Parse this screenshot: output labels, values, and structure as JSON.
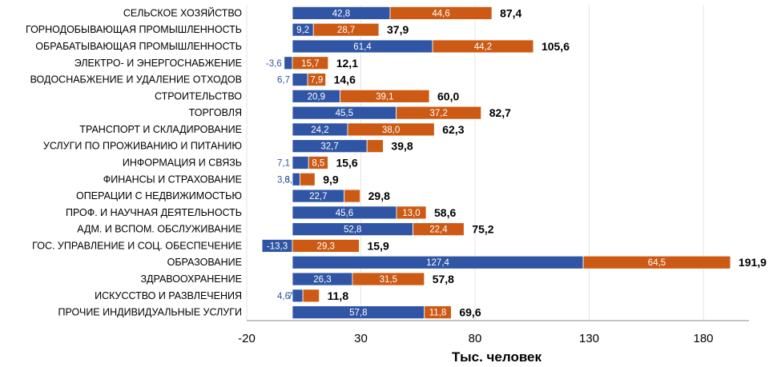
{
  "chart_data": {
    "type": "bar",
    "orientation": "horizontal",
    "stacked": true,
    "xlabel": "Тыс. человек",
    "xlim": [
      -20,
      200
    ],
    "xticks": [
      "-20",
      "30",
      "80",
      "130",
      "180"
    ],
    "grid": true,
    "colors": {
      "series1": "#2f55a4",
      "series2": "#cc5a14",
      "negative_label": "#2f55a4"
    },
    "categories": [
      "СЕЛЬСКОЕ ХОЗЯЙСТВО",
      "ГОРНОДОБЫВАЮЩАЯ ПРОМЫШЛЕННОСТЬ",
      "ОБРАБАТЫВАЮЩАЯ ПРОМЫШЛЕННОСТЬ",
      "ЭЛЕКТРО- И ЭНЕРГОСНАБЖЕНИЕ",
      "ВОДОСНАБЖЕНИЕ И УДАЛЕНИЕ ОТХОДОВ",
      "СТРОИТЕЛЬСТВО",
      "ТОРГОВЛЯ",
      "ТРАНСПОРТ И СКЛАДИРОВАНИЕ",
      "УСЛУГИ ПО ПРОЖИВАНИЮ И ПИТАНИЮ",
      "ИНФОРМАЦИЯ И СВЯЗЬ",
      "ФИНАНСЫ И СТРАХОВАНИЕ",
      "ОПЕРАЦИИ С НЕДВИЖИМОСТЬЮ",
      "ПРОФ. И НАУЧНАЯ ДЕЯТЕЛЬНОСТЬ",
      "АДМ. И ВСПОМ. ОБСЛУЖИВАНИЕ",
      "ГОС. УПРАВЛЕНИЕ И СОЦ. ОБЕСПЕЧЕНИЕ",
      "ОБРАЗОВАНИЕ",
      "ЗДРАВООХРАНЕНИЕ",
      "ИСКУССТВО И РАЗВЛЕЧЕНИЯ",
      "ПРОЧИЕ ИНДИВИДУАЛЬНЫЕ УСЛУГИ"
    ],
    "series": [
      {
        "values": [
          42.8,
          9.2,
          61.4,
          -3.6,
          6.7,
          20.9,
          45.5,
          24.2,
          32.7,
          7.1,
          3.3,
          22.7,
          45.6,
          52.8,
          -13.3,
          127.4,
          26.3,
          4.6,
          57.8
        ],
        "labels": [
          "42,8",
          "9,2",
          "61,4",
          "-3,6",
          "6,7",
          "20,9",
          "45,5",
          "24,2",
          "32,7",
          "7,1",
          "3,3",
          "22,7",
          "45,6",
          "52,8",
          "-13,3",
          "127,4",
          "26,3",
          "4,6",
          "57,8"
        ]
      },
      {
        "values": [
          44.6,
          28.7,
          44.2,
          15.7,
          7.9,
          39.1,
          37.2,
          38.0,
          7.1,
          8.5,
          6.6,
          7.0,
          13.0,
          22.4,
          29.3,
          64.5,
          31.5,
          7.2,
          11.8
        ],
        "labels": [
          "44,6",
          "28,7",
          "44,2",
          "15,7",
          "7,9",
          "39,1",
          "37,2",
          "38,0",
          "7,1",
          "8,5",
          "6,6",
          "7,0",
          "13,0",
          "22,4",
          "29,3",
          "64,5",
          "31,5",
          "7,2",
          "11,8"
        ]
      }
    ],
    "totals": [
      87.4,
      37.9,
      105.6,
      12.1,
      14.6,
      60.0,
      82.7,
      62.3,
      39.8,
      15.6,
      9.9,
      29.8,
      58.6,
      75.2,
      15.9,
      191.9,
      57.8,
      11.8,
      69.6
    ],
    "total_labels": [
      "87,4",
      "37,9",
      "105,6",
      "12,1",
      "14,6",
      "60,0",
      "82,7",
      "62,3",
      "39,8",
      "15,6",
      "9,9",
      "29,8",
      "58,6",
      "75,2",
      "15,9",
      "191,9",
      "57,8",
      "11,8",
      "69,6"
    ]
  }
}
